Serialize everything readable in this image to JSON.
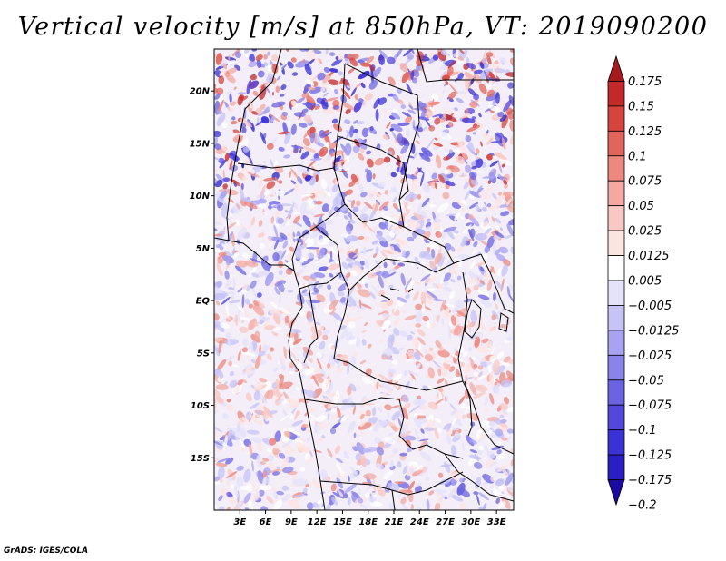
{
  "chart_data": {
    "type": "heatmap",
    "title": "Vertical velocity [m/s] at 850hPa, VT: 2019090200",
    "variable": "Vertical velocity",
    "units": "m/s",
    "level": "850hPa",
    "valid_time": "2019090200",
    "xlim": [
      0,
      35
    ],
    "ylim": [
      -20,
      24
    ],
    "x_ticks": [
      3,
      6,
      9,
      12,
      15,
      18,
      21,
      24,
      27,
      30,
      33
    ],
    "x_tick_labels": [
      "3E",
      "6E",
      "9E",
      "12E",
      "15E",
      "18E",
      "21E",
      "24E",
      "27E",
      "30E",
      "33E"
    ],
    "y_ticks": [
      20,
      15,
      10,
      5,
      0,
      -5,
      -10,
      -15
    ],
    "y_tick_labels": [
      "20N",
      "15N",
      "10N",
      "5N",
      "EQ",
      "5S",
      "10S",
      "15S"
    ],
    "colorbar": {
      "levels": [
        -0.2,
        -0.175,
        -0.125,
        -0.1,
        -0.075,
        -0.05,
        -0.025,
        -0.0125,
        -0.005,
        0.005,
        0.0125,
        0.025,
        0.05,
        0.075,
        0.1,
        0.125,
        0.15,
        0.175
      ],
      "labels": [
        "0.175",
        "0.15",
        "0.125",
        "0.1",
        "0.075",
        "0.05",
        "0.025",
        "0.0125",
        "0.005",
        "−0.005",
        "−0.0125",
        "−0.025",
        "−0.05",
        "−0.075",
        "−0.1",
        "−0.125",
        "−0.175",
        "−0.2"
      ],
      "colors": [
        "#1b0aa0",
        "#2a1fc4",
        "#3b32d6",
        "#5448dc",
        "#6c63e2",
        "#8a83ea",
        "#a8a3f1",
        "#c6c3f7",
        "#e4e2fc",
        "#ffffff",
        "#fde4e1",
        "#f9c8c3",
        "#f3a9a2",
        "#ec8880",
        "#e1655c",
        "#d6453d",
        "#c3282a",
        "#a41a1f"
      ]
    }
  },
  "credit": "GrADS: IGES/COLA"
}
